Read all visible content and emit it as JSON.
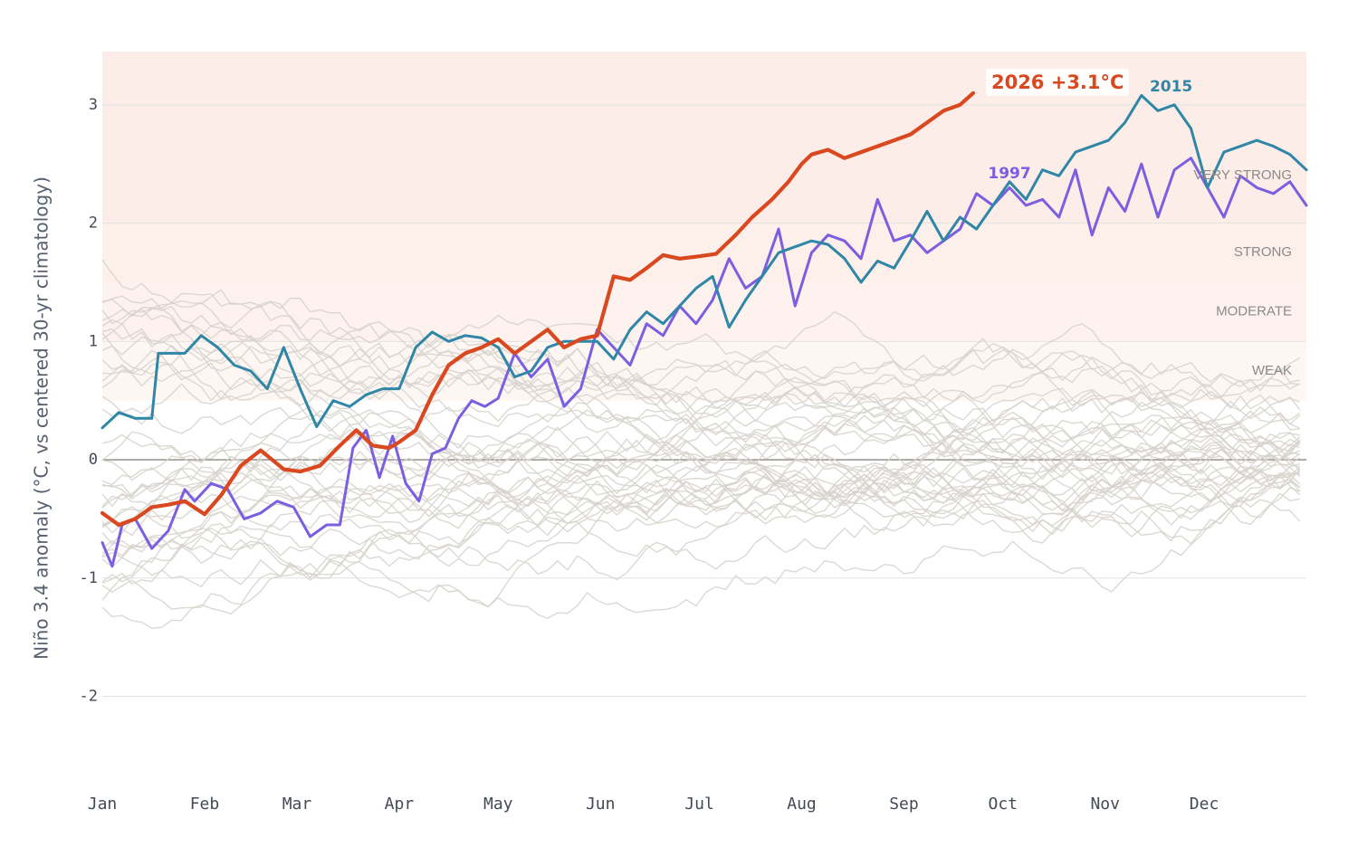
{
  "chart_data": {
    "type": "line",
    "ylabel": "Niño 3.4 anomaly (°C, vs centered 30-yr climatology)",
    "ylim": [
      -2.6,
      3.45
    ],
    "y_ticks": [
      "-2",
      "-1",
      "0",
      "1",
      "2",
      "3"
    ],
    "y_tick_values": [
      -2,
      -1,
      0,
      1,
      2,
      3
    ],
    "x_ticks": [
      "Jan",
      "Feb",
      "Mar",
      "Apr",
      "May",
      "Jun",
      "Jul",
      "Aug",
      "Sep",
      "Oct",
      "Nov",
      "Dec"
    ],
    "x_tick_days": [
      0,
      31,
      59,
      90,
      120,
      151,
      181,
      212,
      243,
      273,
      304,
      334
    ],
    "xlim_days": [
      0,
      365
    ],
    "grid": true,
    "strength_bands": [
      {
        "label": "WEAK",
        "from": 0.5,
        "to": 1.0,
        "label_y": 0.75
      },
      {
        "label": "MODERATE",
        "from": 1.0,
        "to": 1.5,
        "label_y": 1.25
      },
      {
        "label": "STRONG",
        "from": 1.5,
        "to": 2.0,
        "label_y": 1.75
      },
      {
        "label": "VERY STRONG",
        "from": 2.0,
        "to": 3.45,
        "label_y": 2.4
      }
    ],
    "colors": {
      "background_lines": "#d6d2cb",
      "band": "#f4a58a",
      "zero_line": "#8a8680",
      "grid": "#e2e2e2",
      "s2026": "#d9481f",
      "s2015": "#2f86a6",
      "s1997": "#7b5fe0"
    },
    "series": [
      {
        "name": "2026",
        "label": "2026  +3.1°C",
        "color": "#d9481f",
        "width": 4.2,
        "x": [
          0,
          5,
          10,
          15,
          20,
          25,
          31,
          36,
          42,
          48,
          55,
          60,
          66,
          72,
          77,
          82,
          87,
          90,
          95,
          100,
          105,
          110,
          115,
          120,
          125,
          130,
          135,
          140,
          145,
          150,
          153,
          155,
          160,
          165,
          170,
          175,
          181,
          186,
          192,
          197,
          203,
          208,
          212,
          215,
          220,
          225,
          230,
          235,
          240,
          245,
          250,
          255,
          260,
          264
        ],
        "y": [
          -0.45,
          -0.55,
          -0.5,
          -0.4,
          -0.38,
          -0.35,
          -0.46,
          -0.3,
          -0.05,
          0.08,
          -0.08,
          -0.1,
          -0.05,
          0.12,
          0.25,
          0.12,
          0.1,
          0.15,
          0.25,
          0.55,
          0.8,
          0.9,
          0.95,
          1.02,
          0.9,
          1.0,
          1.1,
          0.95,
          1.02,
          1.05,
          1.35,
          1.55,
          1.52,
          1.62,
          1.73,
          1.7,
          1.72,
          1.74,
          1.9,
          2.05,
          2.2,
          2.35,
          2.5,
          2.58,
          2.62,
          2.55,
          2.6,
          2.65,
          2.7,
          2.75,
          2.85,
          2.95,
          3.0,
          3.1
        ]
      },
      {
        "name": "2015",
        "label": "2015",
        "color": "#2f86a6",
        "width": 3.0,
        "x": [
          0,
          5,
          10,
          15,
          17,
          20,
          25,
          30,
          35,
          40,
          45,
          50,
          55,
          60,
          65,
          70,
          75,
          80,
          85,
          90,
          95,
          100,
          105,
          110,
          115,
          120,
          125,
          130,
          135,
          140,
          145,
          150,
          155,
          160,
          165,
          170,
          175,
          180,
          185,
          190,
          195,
          200,
          205,
          210,
          215,
          220,
          225,
          230,
          235,
          240,
          245,
          250,
          255,
          260,
          265,
          270,
          275,
          280,
          285,
          290,
          295,
          300,
          305,
          310,
          315,
          320,
          325,
          330,
          335,
          340,
          345,
          350,
          355,
          360,
          365
        ],
        "y": [
          0.27,
          0.4,
          0.35,
          0.35,
          0.9,
          0.9,
          0.9,
          1.05,
          0.95,
          0.8,
          0.75,
          0.6,
          0.95,
          0.6,
          0.28,
          0.5,
          0.45,
          0.55,
          0.6,
          0.6,
          0.95,
          1.08,
          1.0,
          1.05,
          1.03,
          0.95,
          0.7,
          0.75,
          0.95,
          1.0,
          1.0,
          1.0,
          0.85,
          1.1,
          1.25,
          1.15,
          1.3,
          1.45,
          1.55,
          1.12,
          1.35,
          1.55,
          1.75,
          1.8,
          1.85,
          1.82,
          1.7,
          1.5,
          1.68,
          1.62,
          1.85,
          2.1,
          1.85,
          2.05,
          1.95,
          2.15,
          2.35,
          2.2,
          2.45,
          2.4,
          2.6,
          2.65,
          2.7,
          2.85,
          3.08,
          2.95,
          3.0,
          2.8,
          2.3,
          2.6,
          2.65,
          2.7,
          2.65,
          2.58,
          2.45
        ]
      },
      {
        "name": "1997",
        "label": "1997",
        "color": "#7b5fe0",
        "width": 3.0,
        "x": [
          0,
          3,
          6,
          10,
          15,
          20,
          25,
          28,
          33,
          38,
          43,
          48,
          53,
          58,
          63,
          68,
          72,
          76,
          80,
          84,
          88,
          92,
          96,
          100,
          104,
          108,
          112,
          116,
          120,
          125,
          130,
          135,
          140,
          145,
          150,
          155,
          160,
          165,
          170,
          175,
          180,
          185,
          190,
          195,
          200,
          205,
          210,
          215,
          220,
          225,
          230,
          235,
          240,
          245,
          250,
          255,
          260,
          265,
          270,
          275,
          280,
          285,
          290,
          295,
          300,
          305,
          310,
          315,
          320,
          325,
          330,
          335,
          340,
          345,
          350,
          355,
          360,
          365
        ],
        "y": [
          -0.7,
          -0.9,
          -0.55,
          -0.5,
          -0.75,
          -0.6,
          -0.25,
          -0.35,
          -0.2,
          -0.25,
          -0.5,
          -0.45,
          -0.35,
          -0.4,
          -0.65,
          -0.55,
          -0.55,
          0.1,
          0.25,
          -0.15,
          0.2,
          -0.2,
          -0.35,
          0.05,
          0.1,
          0.35,
          0.5,
          0.45,
          0.52,
          0.9,
          0.7,
          0.85,
          0.45,
          0.6,
          1.1,
          0.95,
          0.8,
          1.15,
          1.05,
          1.3,
          1.15,
          1.35,
          1.7,
          1.45,
          1.55,
          1.95,
          1.3,
          1.75,
          1.9,
          1.85,
          1.7,
          2.2,
          1.85,
          1.9,
          1.75,
          1.85,
          1.95,
          2.25,
          2.15,
          2.3,
          2.15,
          2.2,
          2.05,
          2.45,
          1.9,
          2.3,
          2.1,
          2.5,
          2.05,
          2.45,
          2.55,
          2.3,
          2.05,
          2.4,
          2.3,
          2.25,
          2.35,
          2.15
        ]
      }
    ]
  }
}
